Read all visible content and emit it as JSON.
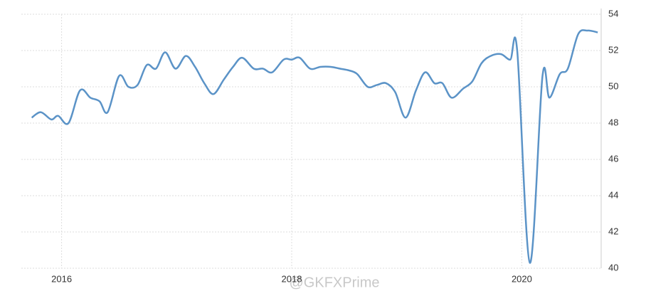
{
  "chart_data": {
    "type": "line",
    "watermark": "@GKFXPrime",
    "x": [
      2015.74,
      2015.82,
      2015.91,
      2015.97,
      2016.06,
      2016.16,
      2016.25,
      2016.33,
      2016.4,
      2016.5,
      2016.58,
      2016.66,
      2016.74,
      2016.82,
      2016.9,
      2016.99,
      2017.08,
      2017.16,
      2017.24,
      2017.32,
      2017.41,
      2017.49,
      2017.57,
      2017.67,
      2017.75,
      2017.83,
      2017.93,
      2018.0,
      2018.07,
      2018.16,
      2018.25,
      2018.34,
      2018.42,
      2018.5,
      2018.57,
      2018.66,
      2018.74,
      2018.82,
      2018.9,
      2018.99,
      2019.08,
      2019.16,
      2019.24,
      2019.31,
      2019.39,
      2019.49,
      2019.57,
      2019.65,
      2019.73,
      2019.82,
      2019.9,
      2019.96,
      2020.07,
      2020.18,
      2020.24,
      2020.33,
      2020.4,
      2020.49,
      2020.57,
      2020.66
    ],
    "series": [
      {
        "color": "#5b93c7",
        "values": [
          48.3,
          48.6,
          48.2,
          48.4,
          48.0,
          49.8,
          49.4,
          49.2,
          48.6,
          50.6,
          50.0,
          50.1,
          51.2,
          51.0,
          51.9,
          51.0,
          51.7,
          51.1,
          50.2,
          49.6,
          50.4,
          51.1,
          51.6,
          51.0,
          51.0,
          50.8,
          51.5,
          51.5,
          51.6,
          51.0,
          51.1,
          51.1,
          51.0,
          50.9,
          50.7,
          50.0,
          50.1,
          50.2,
          49.7,
          48.3,
          49.8,
          50.8,
          50.2,
          50.2,
          49.4,
          49.9,
          50.3,
          51.3,
          51.7,
          51.8,
          51.5,
          52.0,
          40.3,
          50.6,
          49.4,
          50.7,
          51.0,
          52.9,
          53.1,
          53.0
        ]
      }
    ],
    "xlim": [
      2015.65,
      2020.69
    ],
    "xticks": [
      2016,
      2018,
      2020
    ],
    "ylim": [
      40,
      54
    ],
    "yticks": [
      40,
      42,
      44,
      46,
      48,
      50,
      52,
      54
    ],
    "grid": true
  }
}
